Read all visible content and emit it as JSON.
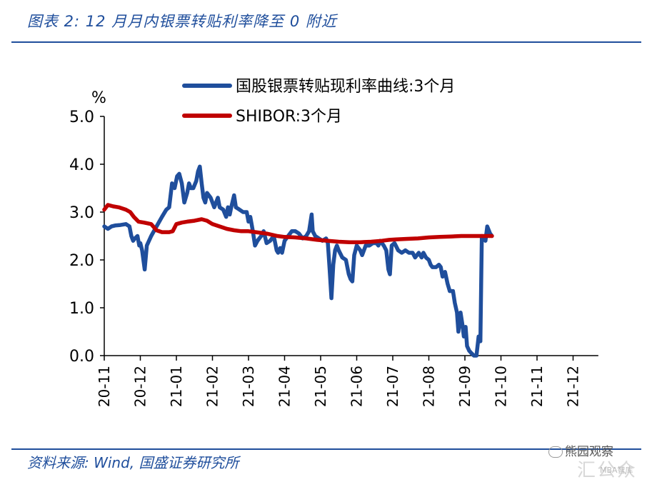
{
  "header": {
    "title": "图表 2:  12 月月内银票转贴利率降至 0 附近"
  },
  "footer": {
    "source": "资料来源:  Wind,  国盛证券研究所",
    "watermark_main": "熊园观察",
    "watermark_faint": "汇公众",
    "watermark_small": "MBA智库"
  },
  "colors": {
    "accent": "#1f4e9c",
    "series_blue": "#1f4e9c",
    "series_red": "#c00000"
  },
  "chart_data": {
    "type": "line",
    "title": "图表 2:  12 月月内银票转贴利率降至 0 附近",
    "xlabel": "",
    "ylabel": "%",
    "ylim": [
      0,
      5
    ],
    "y_ticks": [
      "0.0",
      "1.0",
      "2.0",
      "3.0",
      "4.0",
      "5.0"
    ],
    "x_ticks": [
      "20-11",
      "20-12",
      "21-01",
      "21-02",
      "21-03",
      "21-04",
      "21-05",
      "21-06",
      "21-07",
      "21-08",
      "21-09",
      "21-10",
      "21-11",
      "21-12"
    ],
    "x_range_months": [
      0,
      13.7
    ],
    "legend_position": "top",
    "series": [
      {
        "name": "国股银票转贴现利率曲线:3个月",
        "color": "#1f4e9c",
        "points": [
          [
            0.0,
            2.7
          ],
          [
            0.1,
            2.65
          ],
          [
            0.2,
            2.7
          ],
          [
            0.3,
            2.72
          ],
          [
            0.45,
            2.73
          ],
          [
            0.6,
            2.75
          ],
          [
            0.7,
            2.7
          ],
          [
            0.75,
            2.5
          ],
          [
            0.8,
            2.4
          ],
          [
            0.85,
            2.45
          ],
          [
            0.92,
            2.5
          ],
          [
            0.97,
            2.3
          ],
          [
            1.0,
            2.35
          ],
          [
            1.05,
            2.2
          ],
          [
            1.12,
            1.8
          ],
          [
            1.18,
            2.3
          ],
          [
            1.3,
            2.5
          ],
          [
            1.45,
            2.7
          ],
          [
            1.6,
            2.9
          ],
          [
            1.72,
            3.05
          ],
          [
            1.8,
            3.1
          ],
          [
            1.88,
            3.6
          ],
          [
            1.95,
            3.5
          ],
          [
            2.02,
            3.75
          ],
          [
            2.08,
            3.8
          ],
          [
            2.15,
            3.6
          ],
          [
            2.22,
            3.2
          ],
          [
            2.3,
            3.4
          ],
          [
            2.35,
            3.6
          ],
          [
            2.4,
            3.5
          ],
          [
            2.47,
            3.5
          ],
          [
            2.55,
            3.65
          ],
          [
            2.6,
            3.85
          ],
          [
            2.65,
            3.95
          ],
          [
            2.7,
            3.6
          ],
          [
            2.75,
            3.3
          ],
          [
            2.8,
            3.2
          ],
          [
            2.85,
            3.4
          ],
          [
            2.95,
            3.3
          ],
          [
            3.05,
            3.1
          ],
          [
            3.15,
            3.3
          ],
          [
            3.2,
            3.1
          ],
          [
            3.3,
            3.05
          ],
          [
            3.38,
            2.9
          ],
          [
            3.43,
            3.1
          ],
          [
            3.48,
            2.95
          ],
          [
            3.52,
            3.1
          ],
          [
            3.6,
            3.35
          ],
          [
            3.65,
            3.1
          ],
          [
            3.75,
            3.05
          ],
          [
            3.85,
            3.0
          ],
          [
            3.95,
            3.0
          ],
          [
            4.0,
            2.8
          ],
          [
            4.05,
            2.9
          ],
          [
            4.12,
            2.6
          ],
          [
            4.18,
            2.3
          ],
          [
            4.25,
            2.4
          ],
          [
            4.35,
            2.5
          ],
          [
            4.42,
            2.6
          ],
          [
            4.5,
            2.35
          ],
          [
            4.6,
            2.4
          ],
          [
            4.7,
            2.5
          ],
          [
            4.78,
            2.2
          ],
          [
            4.82,
            2.15
          ],
          [
            4.88,
            2.25
          ],
          [
            4.93,
            2.15
          ],
          [
            5.0,
            2.4
          ],
          [
            5.1,
            2.5
          ],
          [
            5.2,
            2.6
          ],
          [
            5.3,
            2.6
          ],
          [
            5.4,
            2.55
          ],
          [
            5.5,
            2.45
          ],
          [
            5.6,
            2.5
          ],
          [
            5.68,
            2.6
          ],
          [
            5.75,
            2.95
          ],
          [
            5.78,
            2.6
          ],
          [
            5.85,
            2.5
          ],
          [
            5.95,
            2.45
          ],
          [
            6.05,
            2.4
          ],
          [
            6.15,
            2.45
          ],
          [
            6.2,
            2.35
          ],
          [
            6.25,
            1.8
          ],
          [
            6.3,
            1.2
          ],
          [
            6.35,
            1.9
          ],
          [
            6.4,
            2.2
          ],
          [
            6.45,
            2.3
          ],
          [
            6.5,
            2.2
          ],
          [
            6.6,
            2.05
          ],
          [
            6.7,
            2.0
          ],
          [
            6.78,
            1.7
          ],
          [
            6.83,
            1.6
          ],
          [
            6.88,
            1.55
          ],
          [
            6.93,
            2.1
          ],
          [
            7.0,
            2.3
          ],
          [
            7.1,
            2.2
          ],
          [
            7.15,
            2.1
          ],
          [
            7.25,
            2.3
          ],
          [
            7.35,
            2.3
          ],
          [
            7.45,
            2.35
          ],
          [
            7.55,
            2.35
          ],
          [
            7.6,
            2.3
          ],
          [
            7.65,
            2.4
          ],
          [
            7.75,
            2.3
          ],
          [
            7.82,
            2.2
          ],
          [
            7.88,
            1.8
          ],
          [
            7.92,
            1.7
          ],
          [
            7.97,
            2.3
          ],
          [
            8.05,
            2.35
          ],
          [
            8.15,
            2.2
          ],
          [
            8.25,
            2.15
          ],
          [
            8.35,
            2.2
          ],
          [
            8.45,
            2.15
          ],
          [
            8.55,
            2.15
          ],
          [
            8.62,
            2.05
          ],
          [
            8.72,
            2.15
          ],
          [
            8.8,
            2.05
          ],
          [
            8.85,
            2.15
          ],
          [
            8.92,
            2.05
          ],
          [
            9.0,
            2.0
          ],
          [
            9.05,
            1.9
          ],
          [
            9.1,
            1.85
          ],
          [
            9.2,
            1.85
          ],
          [
            9.28,
            1.9
          ],
          [
            9.33,
            1.85
          ],
          [
            9.38,
            1.65
          ],
          [
            9.45,
            1.75
          ],
          [
            9.52,
            1.5
          ],
          [
            9.58,
            1.35
          ],
          [
            9.67,
            1.35
          ],
          [
            9.72,
            1.1
          ],
          [
            9.78,
            0.9
          ],
          [
            9.82,
            0.5
          ],
          [
            9.88,
            0.9
          ],
          [
            9.93,
            0.65
          ],
          [
            9.97,
            0.4
          ],
          [
            10.02,
            0.6
          ],
          [
            10.06,
            0.2
          ],
          [
            10.12,
            0.1
          ],
          [
            10.18,
            0.05
          ],
          [
            10.25,
            0.0
          ],
          [
            10.32,
            0.0
          ],
          [
            10.38,
            0.4
          ],
          [
            10.43,
            0.3
          ],
          [
            10.47,
            2.5
          ],
          [
            10.52,
            2.45
          ],
          [
            10.57,
            2.4
          ],
          [
            10.62,
            2.7
          ],
          [
            10.7,
            2.55
          ],
          [
            10.75,
            2.5
          ]
        ]
      },
      {
        "name": "SHIBOR:3个月",
        "color": "#c00000",
        "points": [
          [
            0.0,
            3.05
          ],
          [
            0.1,
            3.15
          ],
          [
            0.25,
            3.12
          ],
          [
            0.4,
            3.1
          ],
          [
            0.6,
            3.05
          ],
          [
            0.72,
            3.0
          ],
          [
            0.82,
            2.9
          ],
          [
            0.95,
            2.8
          ],
          [
            1.1,
            2.78
          ],
          [
            1.3,
            2.75
          ],
          [
            1.45,
            2.62
          ],
          [
            1.6,
            2.58
          ],
          [
            1.8,
            2.58
          ],
          [
            1.9,
            2.6
          ],
          [
            2.0,
            2.75
          ],
          [
            2.15,
            2.78
          ],
          [
            2.3,
            2.8
          ],
          [
            2.5,
            2.82
          ],
          [
            2.7,
            2.85
          ],
          [
            2.85,
            2.82
          ],
          [
            3.0,
            2.75
          ],
          [
            3.2,
            2.7
          ],
          [
            3.4,
            2.65
          ],
          [
            3.6,
            2.62
          ],
          [
            3.8,
            2.6
          ],
          [
            4.0,
            2.6
          ],
          [
            4.2,
            2.58
          ],
          [
            4.5,
            2.55
          ],
          [
            4.8,
            2.5
          ],
          [
            5.0,
            2.48
          ],
          [
            5.3,
            2.47
          ],
          [
            5.6,
            2.45
          ],
          [
            5.9,
            2.42
          ],
          [
            6.2,
            2.4
          ],
          [
            6.5,
            2.38
          ],
          [
            6.8,
            2.37
          ],
          [
            7.1,
            2.37
          ],
          [
            7.4,
            2.38
          ],
          [
            7.7,
            2.4
          ],
          [
            7.9,
            2.42
          ],
          [
            8.1,
            2.43
          ],
          [
            8.4,
            2.44
          ],
          [
            8.7,
            2.45
          ],
          [
            9.0,
            2.47
          ],
          [
            9.3,
            2.48
          ],
          [
            9.6,
            2.49
          ],
          [
            9.9,
            2.5
          ],
          [
            10.2,
            2.5
          ],
          [
            10.5,
            2.5
          ],
          [
            10.75,
            2.5
          ]
        ]
      }
    ]
  }
}
